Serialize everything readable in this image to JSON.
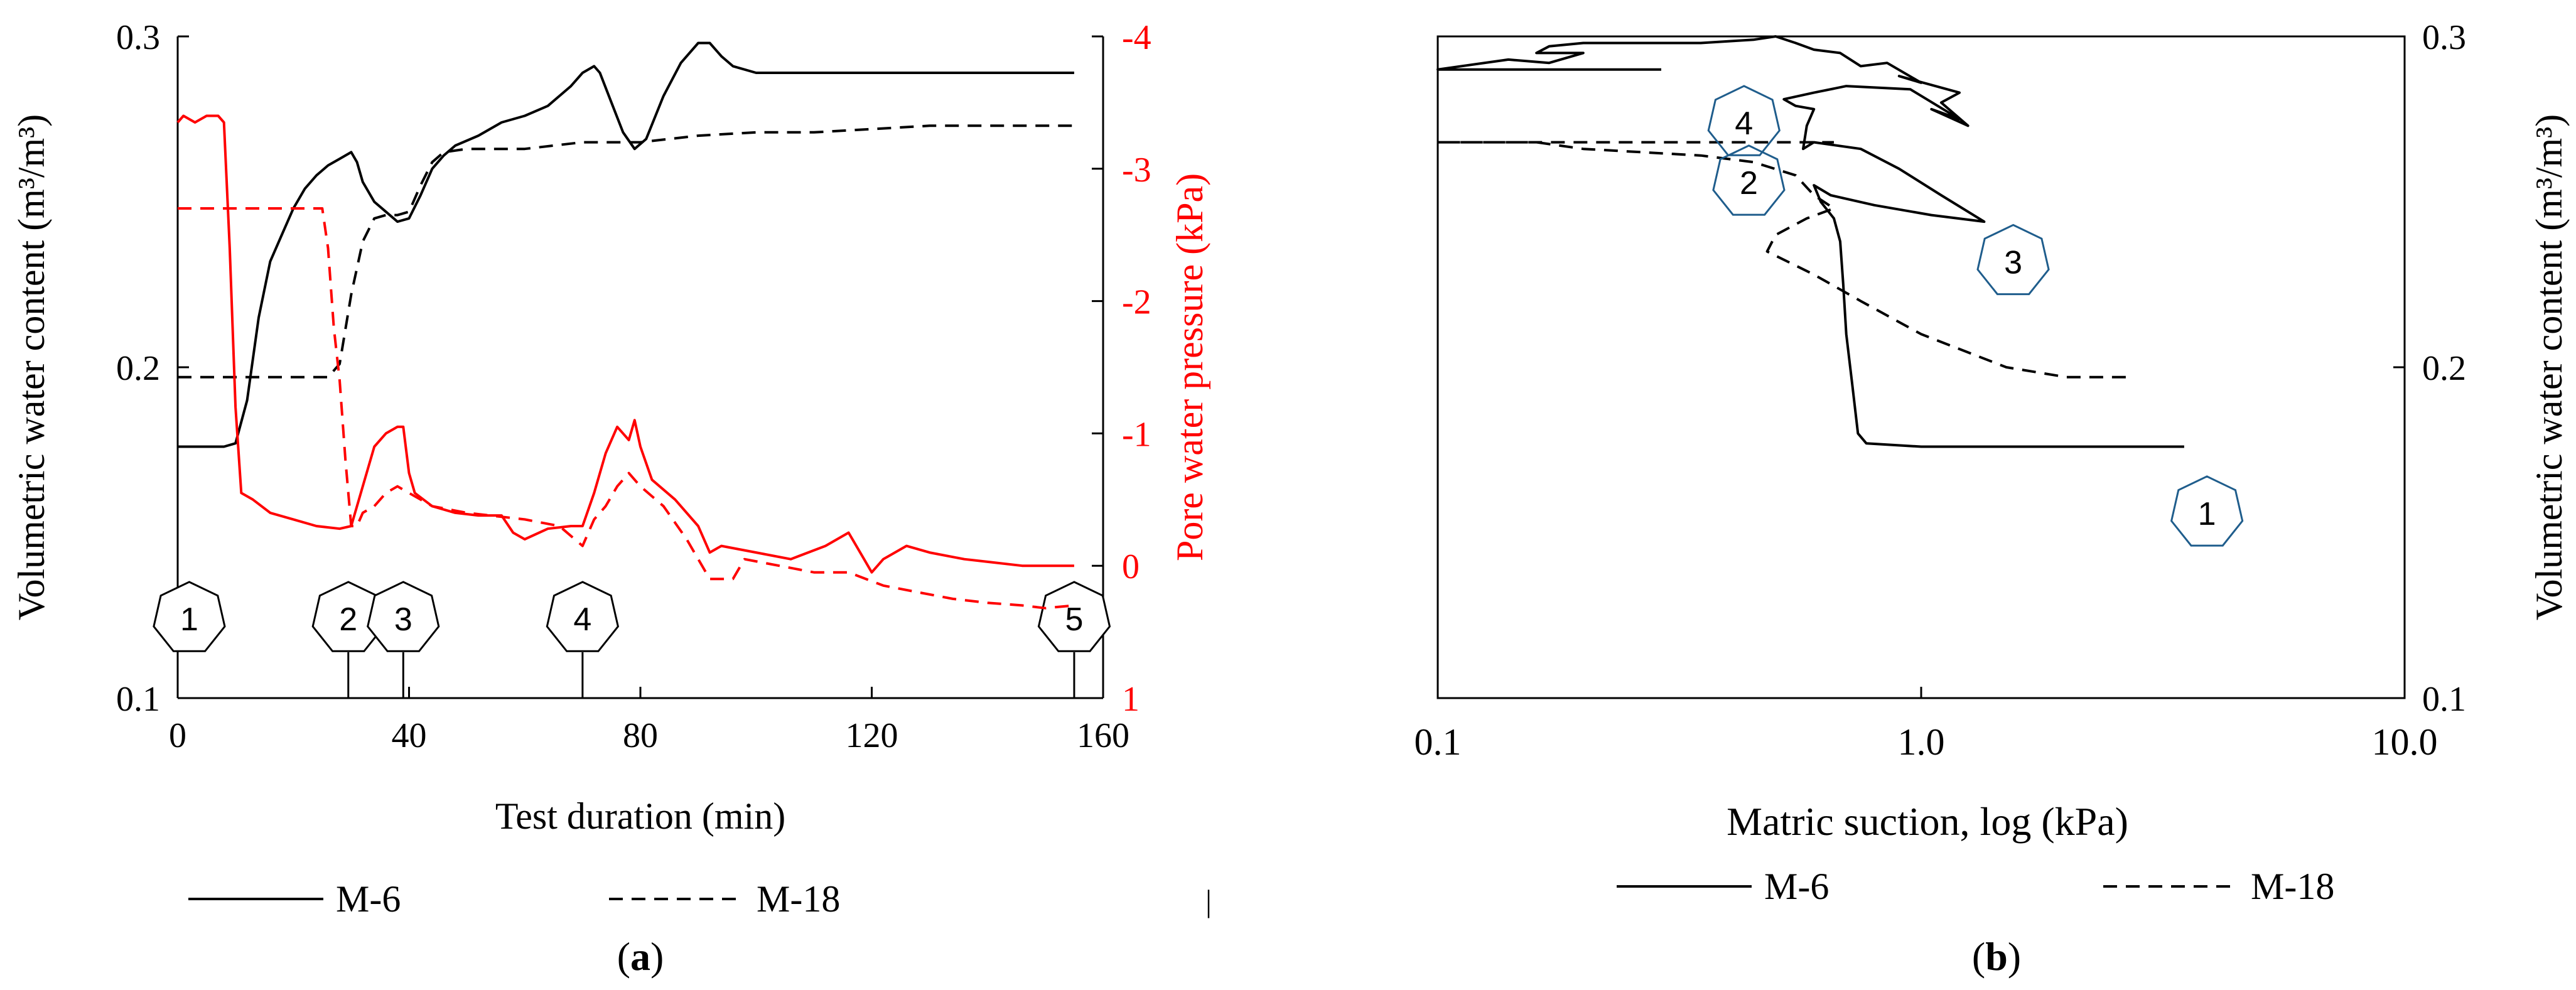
{
  "colors": {
    "black": "#000000",
    "red": "#ff0000",
    "hex_blue": "#1f5d8c"
  },
  "chart_data": [
    {
      "id": "a",
      "type": "line",
      "panel_label": "a",
      "xlabel": "Test duration (min)",
      "ylabel_left": "Volumetric water content (m³/m³)",
      "ylabel_right": "Pore water pressure (kPa)",
      "xlim": [
        0,
        160
      ],
      "ylim_left": [
        0.1,
        0.3
      ],
      "ylim_right": [
        1,
        -4
      ],
      "x_ticks": [
        "0",
        "40",
        "80",
        "120",
        "160"
      ],
      "y_left_ticks": [
        "0.1",
        "0.2",
        "0.3"
      ],
      "y_right_ticks": [
        "1",
        "0",
        "-1",
        "-2",
        "-3",
        "-4"
      ],
      "grid": false,
      "legend_position": "bottom",
      "stage_markers": [
        {
          "label": "1",
          "x": 2
        },
        {
          "label": "2",
          "x": 29.5
        },
        {
          "label": "3",
          "x": 39
        },
        {
          "label": "4",
          "x": 70
        },
        {
          "label": "5",
          "x": 155
        }
      ],
      "series": [
        {
          "name": "M-6",
          "axis": "left",
          "style": "solid",
          "color": "black",
          "points": [
            [
              0,
              0.176
            ],
            [
              8,
              0.176
            ],
            [
              10,
              0.177
            ],
            [
              12,
              0.19
            ],
            [
              14,
              0.215
            ],
            [
              16,
              0.232
            ],
            [
              18,
              0.24
            ],
            [
              20,
              0.248
            ],
            [
              22,
              0.254
            ],
            [
              24,
              0.258
            ],
            [
              26,
              0.261
            ],
            [
              28,
              0.263
            ],
            [
              30,
              0.265
            ],
            [
              31,
              0.262
            ],
            [
              32,
              0.256
            ],
            [
              34,
              0.25
            ],
            [
              36,
              0.247
            ],
            [
              38,
              0.244
            ],
            [
              40,
              0.245
            ],
            [
              42,
              0.252
            ],
            [
              44,
              0.26
            ],
            [
              46,
              0.264
            ],
            [
              48,
              0.267
            ],
            [
              52,
              0.27
            ],
            [
              56,
              0.274
            ],
            [
              60,
              0.276
            ],
            [
              64,
              0.279
            ],
            [
              68,
              0.285
            ],
            [
              70,
              0.289
            ],
            [
              72,
              0.291
            ],
            [
              73,
              0.289
            ],
            [
              75,
              0.28
            ],
            [
              77,
              0.271
            ],
            [
              79,
              0.266
            ],
            [
              81,
              0.269
            ],
            [
              84,
              0.282
            ],
            [
              87,
              0.292
            ],
            [
              90,
              0.298
            ],
            [
              92,
              0.298
            ],
            [
              94,
              0.294
            ],
            [
              96,
              0.291
            ],
            [
              100,
              0.289
            ],
            [
              110,
              0.289
            ],
            [
              120,
              0.289
            ],
            [
              130,
              0.289
            ],
            [
              140,
              0.289
            ],
            [
              150,
              0.289
            ],
            [
              155,
              0.289
            ]
          ]
        },
        {
          "name": "M-18",
          "axis": "left",
          "style": "dashed",
          "color": "black",
          "points": [
            [
              0,
              0.197
            ],
            [
              26,
              0.197
            ],
            [
              28,
              0.201
            ],
            [
              30,
              0.222
            ],
            [
              32,
              0.238
            ],
            [
              34,
              0.245
            ],
            [
              36,
              0.246
            ],
            [
              38,
              0.246
            ],
            [
              40,
              0.247
            ],
            [
              42,
              0.255
            ],
            [
              44,
              0.262
            ],
            [
              46,
              0.265
            ],
            [
              50,
              0.266
            ],
            [
              60,
              0.266
            ],
            [
              70,
              0.268
            ],
            [
              80,
              0.268
            ],
            [
              90,
              0.27
            ],
            [
              100,
              0.271
            ],
            [
              110,
              0.271
            ],
            [
              120,
              0.272
            ],
            [
              130,
              0.273
            ],
            [
              140,
              0.273
            ],
            [
              150,
              0.273
            ],
            [
              155,
              0.273
            ]
          ]
        },
        {
          "name": "Pore water pressure (solid)",
          "axis": "right",
          "style": "solid",
          "color": "red",
          "points": [
            [
              0,
              -3.35
            ],
            [
              1,
              -3.4
            ],
            [
              3,
              -3.35
            ],
            [
              5,
              -3.4
            ],
            [
              7,
              -3.4
            ],
            [
              8,
              -3.35
            ],
            [
              9,
              -2.4
            ],
            [
              10,
              -1.2
            ],
            [
              11,
              -0.55
            ],
            [
              13,
              -0.5
            ],
            [
              16,
              -0.4
            ],
            [
              20,
              -0.35
            ],
            [
              24,
              -0.3
            ],
            [
              28,
              -0.28
            ],
            [
              30,
              -0.3
            ],
            [
              32,
              -0.6
            ],
            [
              34,
              -0.9
            ],
            [
              36,
              -1.0
            ],
            [
              38,
              -1.05
            ],
            [
              39,
              -1.05
            ],
            [
              40,
              -0.7
            ],
            [
              41,
              -0.55
            ],
            [
              44,
              -0.45
            ],
            [
              48,
              -0.4
            ],
            [
              52,
              -0.38
            ],
            [
              56,
              -0.38
            ],
            [
              58,
              -0.25
            ],
            [
              60,
              -0.2
            ],
            [
              64,
              -0.28
            ],
            [
              68,
              -0.3
            ],
            [
              70,
              -0.3
            ],
            [
              72,
              -0.55
            ],
            [
              74,
              -0.85
            ],
            [
              76,
              -1.05
            ],
            [
              78,
              -0.95
            ],
            [
              79,
              -1.1
            ],
            [
              80,
              -0.9
            ],
            [
              82,
              -0.65
            ],
            [
              86,
              -0.5
            ],
            [
              90,
              -0.3
            ],
            [
              92,
              -0.1
            ],
            [
              94,
              -0.15
            ],
            [
              100,
              -0.1
            ],
            [
              106,
              -0.05
            ],
            [
              112,
              -0.15
            ],
            [
              116,
              -0.25
            ],
            [
              118,
              -0.1
            ],
            [
              120,
              0.05
            ],
            [
              122,
              -0.05
            ],
            [
              126,
              -0.15
            ],
            [
              130,
              -0.1
            ],
            [
              136,
              -0.05
            ],
            [
              140,
              -0.03
            ],
            [
              146,
              0.0
            ],
            [
              150,
              0.0
            ],
            [
              155,
              0.0
            ]
          ]
        },
        {
          "name": "Pore water pressure (dashed)",
          "axis": "right",
          "style": "dashed",
          "color": "red",
          "points": [
            [
              0,
              -2.7
            ],
            [
              22,
              -2.7
            ],
            [
              25,
              -2.7
            ],
            [
              26,
              -2.4
            ],
            [
              27,
              -1.8
            ],
            [
              28,
              -1.4
            ],
            [
              29,
              -0.8
            ],
            [
              30,
              -0.3
            ],
            [
              31,
              -0.3
            ],
            [
              32,
              -0.4
            ],
            [
              34,
              -0.45
            ],
            [
              36,
              -0.55
            ],
            [
              38,
              -0.6
            ],
            [
              40,
              -0.55
            ],
            [
              44,
              -0.45
            ],
            [
              50,
              -0.4
            ],
            [
              60,
              -0.35
            ],
            [
              66,
              -0.3
            ],
            [
              70,
              -0.15
            ],
            [
              72,
              -0.35
            ],
            [
              74,
              -0.45
            ],
            [
              76,
              -0.6
            ],
            [
              78,
              -0.7
            ],
            [
              80,
              -0.6
            ],
            [
              84,
              -0.45
            ],
            [
              88,
              -0.2
            ],
            [
              92,
              0.1
            ],
            [
              96,
              0.1
            ],
            [
              98,
              -0.05
            ],
            [
              104,
              0.0
            ],
            [
              110,
              0.05
            ],
            [
              116,
              0.05
            ],
            [
              122,
              0.15
            ],
            [
              128,
              0.2
            ],
            [
              134,
              0.25
            ],
            [
              140,
              0.28
            ],
            [
              146,
              0.3
            ],
            [
              150,
              0.32
            ],
            [
              155,
              0.3
            ]
          ]
        }
      ]
    },
    {
      "id": "b",
      "type": "line",
      "panel_label": "b",
      "xlabel": "Matric suction, log (kPa)",
      "ylabel_right": "Volumetric water content (m³/m³)",
      "x_scale": "log",
      "xlim": [
        0.1,
        10
      ],
      "ylim": [
        0.1,
        0.3
      ],
      "x_ticks": [
        "0.1",
        "1.0",
        "10.0"
      ],
      "y_ticks": [
        "0.1",
        "0.2",
        "0.3"
      ],
      "grid": false,
      "legend_position": "bottom",
      "stage_markers": [
        {
          "label": "1",
          "x": 3.9,
          "y": 0.156
        },
        {
          "label": "2",
          "x": 0.44,
          "y": 0.256
        },
        {
          "label": "3",
          "x": 1.55,
          "y": 0.232
        },
        {
          "label": "4",
          "x": 0.43,
          "y": 0.274
        }
      ],
      "series": [
        {
          "name": "M-6",
          "style": "solid",
          "color": "black",
          "points": [
            [
              3.5,
              0.176
            ],
            [
              1.0,
              0.176
            ],
            [
              0.77,
              0.177
            ],
            [
              0.74,
              0.18
            ],
            [
              0.72,
              0.195
            ],
            [
              0.7,
              0.21
            ],
            [
              0.69,
              0.225
            ],
            [
              0.68,
              0.238
            ],
            [
              0.66,
              0.245
            ],
            [
              0.62,
              0.25
            ],
            [
              0.6,
              0.255
            ],
            [
              0.65,
              0.252
            ],
            [
              0.8,
              0.249
            ],
            [
              1.05,
              0.246
            ],
            [
              1.35,
              0.244
            ],
            [
              1.1,
              0.252
            ],
            [
              0.9,
              0.26
            ],
            [
              0.75,
              0.266
            ],
            [
              0.6,
              0.268
            ],
            [
              0.57,
              0.266
            ],
            [
              0.58,
              0.273
            ],
            [
              0.6,
              0.278
            ],
            [
              0.55,
              0.279
            ],
            [
              0.52,
              0.281
            ],
            [
              0.6,
              0.283
            ],
            [
              0.7,
              0.285
            ],
            [
              0.95,
              0.284
            ],
            [
              1.2,
              0.275
            ],
            [
              1.05,
              0.278
            ],
            [
              1.25,
              0.273
            ],
            [
              1.1,
              0.28
            ],
            [
              1.2,
              0.283
            ],
            [
              0.9,
              0.288
            ],
            [
              1.0,
              0.286
            ],
            [
              0.85,
              0.292
            ],
            [
              0.75,
              0.291
            ],
            [
              0.68,
              0.295
            ],
            [
              0.6,
              0.296
            ],
            [
              0.55,
              0.298
            ],
            [
              0.5,
              0.3
            ],
            [
              0.45,
              0.299
            ],
            [
              0.35,
              0.298
            ],
            [
              0.2,
              0.298
            ],
            [
              0.17,
              0.297
            ],
            [
              0.16,
              0.295
            ],
            [
              0.2,
              0.295
            ],
            [
              0.17,
              0.292
            ],
            [
              0.14,
              0.293
            ],
            [
              0.1,
              0.29
            ],
            [
              0.29,
              0.29
            ]
          ]
        },
        {
          "name": "M-18",
          "style": "dashed",
          "color": "black",
          "points": [
            [
              2.65,
              0.197
            ],
            [
              2.0,
              0.197
            ],
            [
              1.5,
              0.2
            ],
            [
              1.0,
              0.21
            ],
            [
              0.75,
              0.22
            ],
            [
              0.6,
              0.228
            ],
            [
              0.48,
              0.235
            ],
            [
              0.5,
              0.24
            ],
            [
              0.58,
              0.245
            ],
            [
              0.66,
              0.248
            ],
            [
              0.6,
              0.252
            ],
            [
              0.55,
              0.258
            ],
            [
              0.45,
              0.262
            ],
            [
              0.35,
              0.264
            ],
            [
              0.2,
              0.266
            ],
            [
              0.16,
              0.268
            ],
            [
              0.1,
              0.268
            ],
            [
              0.66,
              0.268
            ]
          ]
        }
      ]
    }
  ],
  "legend_a": {
    "solid_label": "M-6",
    "dashed_label": "M-18"
  },
  "legend_b": {
    "solid_label": "M-6",
    "dashed_label": "M-18"
  },
  "divider_mark": "|"
}
